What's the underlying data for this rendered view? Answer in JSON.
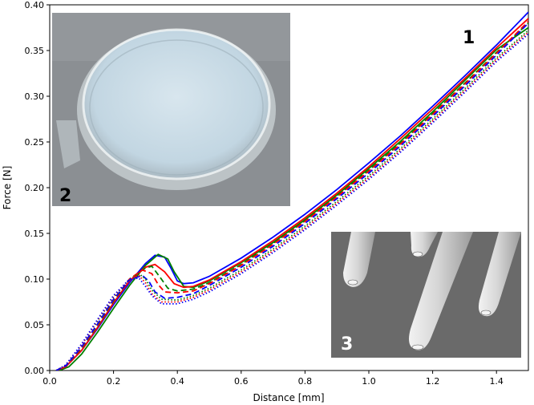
{
  "chart_data": {
    "type": "line",
    "xlabel": "Distance [mm]",
    "ylabel": "Force [N]",
    "xlim": [
      0,
      1.5
    ],
    "ylim": [
      0,
      0.4
    ],
    "x_ticks": [
      "0.0",
      "0.2",
      "0.4",
      "0.6",
      "0.8",
      "1.0",
      "1.2",
      "1.4"
    ],
    "y_ticks": [
      "0.00",
      "0.05",
      "0.10",
      "0.15",
      "0.20",
      "0.25",
      "0.30",
      "0.35",
      "0.40"
    ],
    "grid": false,
    "series": [
      {
        "color": "#0000ff",
        "style": "solid",
        "points": [
          [
            0.02,
            0
          ],
          [
            0.05,
            0.004
          ],
          [
            0.1,
            0.022
          ],
          [
            0.15,
            0.046
          ],
          [
            0.2,
            0.072
          ],
          [
            0.25,
            0.096
          ],
          [
            0.3,
            0.117
          ],
          [
            0.33,
            0.126
          ],
          [
            0.36,
            0.124
          ],
          [
            0.38,
            0.112
          ],
          [
            0.4,
            0.098
          ],
          [
            0.42,
            0.095
          ],
          [
            0.45,
            0.096
          ],
          [
            0.5,
            0.103
          ],
          [
            0.6,
            0.123
          ],
          [
            0.7,
            0.146
          ],
          [
            0.8,
            0.171
          ],
          [
            0.9,
            0.198
          ],
          [
            1.0,
            0.227
          ],
          [
            1.1,
            0.257
          ],
          [
            1.2,
            0.289
          ],
          [
            1.3,
            0.322
          ],
          [
            1.4,
            0.356
          ],
          [
            1.5,
            0.392
          ]
        ]
      },
      {
        "color": "#008000",
        "style": "solid",
        "points": [
          [
            0.03,
            0
          ],
          [
            0.06,
            0.004
          ],
          [
            0.1,
            0.018
          ],
          [
            0.15,
            0.042
          ],
          [
            0.2,
            0.068
          ],
          [
            0.25,
            0.093
          ],
          [
            0.3,
            0.115
          ],
          [
            0.34,
            0.127
          ],
          [
            0.37,
            0.122
          ],
          [
            0.39,
            0.108
          ],
          [
            0.42,
            0.092
          ],
          [
            0.45,
            0.091
          ],
          [
            0.5,
            0.098
          ],
          [
            0.6,
            0.118
          ],
          [
            0.7,
            0.14
          ],
          [
            0.8,
            0.165
          ],
          [
            0.9,
            0.192
          ],
          [
            1.0,
            0.221
          ],
          [
            1.1,
            0.251
          ],
          [
            1.2,
            0.283
          ],
          [
            1.3,
            0.317
          ],
          [
            1.4,
            0.351
          ],
          [
            1.5,
            0.375
          ]
        ]
      },
      {
        "color": "#ff0000",
        "style": "solid",
        "points": [
          [
            0.02,
            0
          ],
          [
            0.05,
            0.004
          ],
          [
            0.1,
            0.022
          ],
          [
            0.15,
            0.047
          ],
          [
            0.2,
            0.074
          ],
          [
            0.25,
            0.098
          ],
          [
            0.3,
            0.113
          ],
          [
            0.33,
            0.116
          ],
          [
            0.36,
            0.108
          ],
          [
            0.39,
            0.095
          ],
          [
            0.42,
            0.091
          ],
          [
            0.45,
            0.092
          ],
          [
            0.5,
            0.099
          ],
          [
            0.6,
            0.119
          ],
          [
            0.7,
            0.142
          ],
          [
            0.8,
            0.167
          ],
          [
            0.9,
            0.194
          ],
          [
            1.0,
            0.223
          ],
          [
            1.1,
            0.254
          ],
          [
            1.2,
            0.286
          ],
          [
            1.3,
            0.319
          ],
          [
            1.4,
            0.353
          ],
          [
            1.5,
            0.385
          ]
        ]
      },
      {
        "color": "#008000",
        "style": "dashed",
        "points": [
          [
            0.02,
            0
          ],
          [
            0.05,
            0.005
          ],
          [
            0.1,
            0.024
          ],
          [
            0.15,
            0.049
          ],
          [
            0.2,
            0.076
          ],
          [
            0.25,
            0.1
          ],
          [
            0.3,
            0.112
          ],
          [
            0.32,
            0.114
          ],
          [
            0.35,
            0.1
          ],
          [
            0.37,
            0.09
          ],
          [
            0.4,
            0.087
          ],
          [
            0.45,
            0.089
          ],
          [
            0.5,
            0.096
          ],
          [
            0.6,
            0.116
          ],
          [
            0.7,
            0.139
          ],
          [
            0.8,
            0.164
          ],
          [
            0.9,
            0.191
          ],
          [
            1.0,
            0.219
          ],
          [
            1.1,
            0.249
          ],
          [
            1.2,
            0.281
          ],
          [
            1.3,
            0.314
          ],
          [
            1.4,
            0.348
          ],
          [
            1.5,
            0.38
          ]
        ]
      },
      {
        "color": "#ff0000",
        "style": "dashed",
        "points": [
          [
            0.02,
            0
          ],
          [
            0.05,
            0.005
          ],
          [
            0.1,
            0.025
          ],
          [
            0.15,
            0.05
          ],
          [
            0.2,
            0.077
          ],
          [
            0.25,
            0.1
          ],
          [
            0.29,
            0.11
          ],
          [
            0.32,
            0.106
          ],
          [
            0.34,
            0.094
          ],
          [
            0.36,
            0.086
          ],
          [
            0.4,
            0.085
          ],
          [
            0.45,
            0.087
          ],
          [
            0.5,
            0.095
          ],
          [
            0.6,
            0.115
          ],
          [
            0.7,
            0.138
          ],
          [
            0.8,
            0.163
          ],
          [
            0.9,
            0.19
          ],
          [
            1.0,
            0.218
          ],
          [
            1.1,
            0.248
          ],
          [
            1.2,
            0.28
          ],
          [
            1.3,
            0.313
          ],
          [
            1.4,
            0.347
          ],
          [
            1.5,
            0.382
          ]
        ]
      },
      {
        "color": "#0000ff",
        "style": "dashed",
        "points": [
          [
            0.02,
            0
          ],
          [
            0.05,
            0.005
          ],
          [
            0.1,
            0.026
          ],
          [
            0.15,
            0.051
          ],
          [
            0.2,
            0.078
          ],
          [
            0.25,
            0.099
          ],
          [
            0.29,
            0.104
          ],
          [
            0.31,
            0.098
          ],
          [
            0.33,
            0.086
          ],
          [
            0.36,
            0.079
          ],
          [
            0.4,
            0.08
          ],
          [
            0.45,
            0.084
          ],
          [
            0.5,
            0.093
          ],
          [
            0.6,
            0.113
          ],
          [
            0.7,
            0.136
          ],
          [
            0.8,
            0.161
          ],
          [
            0.9,
            0.188
          ],
          [
            1.0,
            0.216
          ],
          [
            1.1,
            0.246
          ],
          [
            1.2,
            0.278
          ],
          [
            1.3,
            0.311
          ],
          [
            1.4,
            0.345
          ],
          [
            1.5,
            0.38
          ]
        ]
      },
      {
        "color": "#008000",
        "style": "dotted",
        "points": [
          [
            0.02,
            0
          ],
          [
            0.05,
            0.006
          ],
          [
            0.1,
            0.028
          ],
          [
            0.15,
            0.054
          ],
          [
            0.2,
            0.08
          ],
          [
            0.25,
            0.1
          ],
          [
            0.28,
            0.106
          ],
          [
            0.3,
            0.1
          ],
          [
            0.32,
            0.088
          ],
          [
            0.35,
            0.078
          ],
          [
            0.4,
            0.077
          ],
          [
            0.45,
            0.082
          ],
          [
            0.5,
            0.09
          ],
          [
            0.6,
            0.11
          ],
          [
            0.7,
            0.133
          ],
          [
            0.8,
            0.158
          ],
          [
            0.9,
            0.185
          ],
          [
            1.0,
            0.213
          ],
          [
            1.1,
            0.243
          ],
          [
            1.2,
            0.275
          ],
          [
            1.3,
            0.308
          ],
          [
            1.4,
            0.342
          ],
          [
            1.5,
            0.372
          ]
        ]
      },
      {
        "color": "#ff0000",
        "style": "dotted",
        "points": [
          [
            0.02,
            0
          ],
          [
            0.05,
            0.006
          ],
          [
            0.1,
            0.028
          ],
          [
            0.15,
            0.055
          ],
          [
            0.2,
            0.081
          ],
          [
            0.25,
            0.1
          ],
          [
            0.28,
            0.104
          ],
          [
            0.3,
            0.096
          ],
          [
            0.32,
            0.084
          ],
          [
            0.35,
            0.075
          ],
          [
            0.4,
            0.075
          ],
          [
            0.45,
            0.08
          ],
          [
            0.5,
            0.088
          ],
          [
            0.6,
            0.108
          ],
          [
            0.7,
            0.131
          ],
          [
            0.8,
            0.156
          ],
          [
            0.9,
            0.183
          ],
          [
            1.0,
            0.211
          ],
          [
            1.1,
            0.241
          ],
          [
            1.2,
            0.273
          ],
          [
            1.3,
            0.306
          ],
          [
            1.4,
            0.34
          ],
          [
            1.5,
            0.37
          ]
        ]
      },
      {
        "color": "#0000ff",
        "style": "dotted",
        "points": [
          [
            0.02,
            0
          ],
          [
            0.05,
            0.006
          ],
          [
            0.1,
            0.029
          ],
          [
            0.15,
            0.056
          ],
          [
            0.2,
            0.082
          ],
          [
            0.25,
            0.1
          ],
          [
            0.28,
            0.101
          ],
          [
            0.3,
            0.092
          ],
          [
            0.32,
            0.082
          ],
          [
            0.35,
            0.073
          ],
          [
            0.4,
            0.073
          ],
          [
            0.45,
            0.078
          ],
          [
            0.5,
            0.086
          ],
          [
            0.6,
            0.106
          ],
          [
            0.7,
            0.129
          ],
          [
            0.8,
            0.154
          ],
          [
            0.9,
            0.181
          ],
          [
            1.0,
            0.209
          ],
          [
            1.1,
            0.239
          ],
          [
            1.2,
            0.271
          ],
          [
            1.3,
            0.304
          ],
          [
            1.4,
            0.338
          ],
          [
            1.5,
            0.368
          ]
        ]
      }
    ],
    "annotations": [
      "1",
      "2",
      "3"
    ]
  }
}
